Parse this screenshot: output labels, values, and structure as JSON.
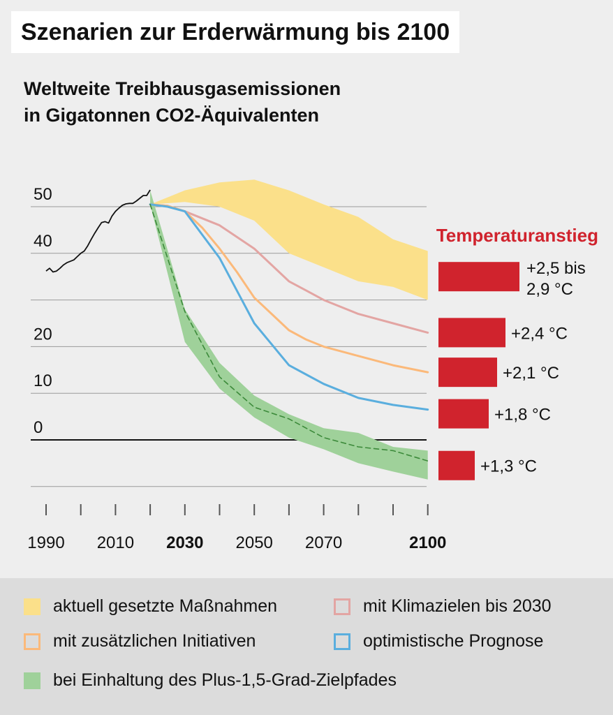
{
  "title": "Szenarien zur Erderwärmung bis 2100",
  "subtitle_line1": "Weltweite Treibhausgasemissionen",
  "subtitle_line2": "in Gigatonnen CO2-Äquivalenten",
  "colors": {
    "yellow": "#fbe08a",
    "pink": "#e3a5a3",
    "orange": "#fbb97a",
    "blue": "#5aaede",
    "green": "#9fd19a",
    "green_line": "#3c8a3a",
    "red": "#d0232d",
    "history": "#111111"
  },
  "chart_data": {
    "type": "line",
    "xlabel": "",
    "ylabel": "",
    "xlim": [
      1985,
      2100
    ],
    "ylim": [
      -10,
      60
    ],
    "y_ticks": [
      {
        "value": 50,
        "label": "50"
      },
      {
        "value": 40,
        "label": "40"
      },
      {
        "value": 30,
        "label": ""
      },
      {
        "value": 20,
        "label": "20"
      },
      {
        "value": 10,
        "label": "10"
      },
      {
        "value": 0,
        "label": "0"
      },
      {
        "value": -10,
        "label": ""
      }
    ],
    "x_ticks": [
      1990,
      2000,
      2010,
      2020,
      2030,
      2040,
      2050,
      2060,
      2070,
      2080,
      2090,
      2100
    ],
    "x_labels": [
      {
        "value": 1990,
        "label": "1990",
        "bold": false
      },
      {
        "value": 2010,
        "label": "2010",
        "bold": false
      },
      {
        "value": 2030,
        "label": "2030",
        "bold": true
      },
      {
        "value": 2050,
        "label": "2050",
        "bold": false
      },
      {
        "value": 2070,
        "label": "2070",
        "bold": false
      },
      {
        "value": 2100,
        "label": "2100",
        "bold": true
      }
    ],
    "history": {
      "x": [
        1990,
        1991,
        1992,
        1993,
        1994,
        1995,
        1996,
        1997,
        1998,
        1999,
        2000,
        2001,
        2002,
        2003,
        2004,
        2005,
        2006,
        2007,
        2008,
        2009,
        2010,
        2011,
        2012,
        2013,
        2014,
        2015,
        2016,
        2017,
        2018,
        2019,
        2020
      ],
      "y": [
        36.2,
        36.8,
        36.0,
        36.2,
        36.8,
        37.5,
        38.0,
        38.3,
        38.6,
        39.3,
        40.0,
        40.5,
        41.6,
        43.0,
        44.3,
        45.5,
        46.6,
        46.8,
        46.5,
        48.0,
        49.0,
        49.7,
        50.3,
        50.6,
        50.7,
        50.7,
        51.2,
        51.8,
        52.4,
        52.4,
        53.6
      ]
    },
    "bands": [
      {
        "name": "aktuell gesetzte Maßnahmen",
        "color_key": "yellow",
        "x": [
          2020,
          2030,
          2040,
          2050,
          2060,
          2070,
          2080,
          2090,
          2100
        ],
        "upper": [
          50.5,
          53.5,
          55.2,
          55.8,
          53.5,
          50.5,
          47.8,
          43.0,
          40.5
        ],
        "lower": [
          50.5,
          51.0,
          50.0,
          47.0,
          40.0,
          37.0,
          34.0,
          32.8,
          30.0
        ]
      },
      {
        "name": "bei Einhaltung des Plus-1,5-Grad-Zielpfades",
        "color_key": "green",
        "x": [
          2020,
          2030,
          2040,
          2050,
          2060,
          2070,
          2080,
          2090,
          2100
        ],
        "upper": [
          53.5,
          28.0,
          16.5,
          9.5,
          5.5,
          2.5,
          1.5,
          -1.5,
          -2.3
        ],
        "lower": [
          50.5,
          21.0,
          11.0,
          4.8,
          0.5,
          -2.0,
          -5.0,
          -6.8,
          -8.5
        ]
      }
    ],
    "series": [
      {
        "name": "mit Klimazielen bis 2030",
        "color_key": "pink",
        "x": [
          2020,
          2025,
          2030,
          2035,
          2040,
          2045,
          2050,
          2055,
          2060,
          2065,
          2070,
          2080,
          2090,
          2100
        ],
        "y": [
          50.5,
          50.2,
          49.0,
          47.5,
          46.0,
          43.5,
          41.0,
          37.5,
          34.0,
          32.0,
          30.0,
          27.0,
          25.0,
          23.0
        ]
      },
      {
        "name": "mit zusätzlichen Initiativen",
        "color_key": "orange",
        "x": [
          2020,
          2025,
          2030,
          2035,
          2040,
          2045,
          2050,
          2055,
          2060,
          2065,
          2070,
          2080,
          2090,
          2100
        ],
        "y": [
          50.5,
          50.2,
          49.0,
          45.5,
          41.0,
          36.0,
          30.5,
          27.0,
          23.5,
          21.5,
          20.0,
          18.0,
          16.0,
          14.5
        ]
      },
      {
        "name": "optimistische Prognose",
        "color_key": "blue",
        "x": [
          2020,
          2025,
          2030,
          2035,
          2040,
          2045,
          2050,
          2055,
          2060,
          2065,
          2070,
          2080,
          2090,
          2100
        ],
        "y": [
          50.5,
          50.0,
          49.0,
          44.0,
          39.0,
          32.0,
          25.0,
          20.5,
          16.0,
          14.0,
          12.0,
          9.0,
          7.5,
          6.5
        ]
      },
      {
        "name": "",
        "color_key": "green_line",
        "dashed": true,
        "x": [
          2020,
          2030,
          2040,
          2050,
          2060,
          2070,
          2080,
          2090,
          2100
        ],
        "y": [
          50.5,
          27.5,
          13.5,
          7.0,
          4.5,
          0.5,
          -1.5,
          -2.3,
          -4.5
        ]
      }
    ],
    "temperature": {
      "title": "Temperaturanstieg",
      "bars": [
        {
          "label_line1": "+2,5  bis",
          "label_line2": "2,9 °C",
          "value": 2.9,
          "center_y": 35.0
        },
        {
          "label_line1": "+2,4 °C",
          "label_line2": "",
          "value": 2.4,
          "center_y": 23.0
        },
        {
          "label_line1": "+2,1 °C",
          "label_line2": "",
          "value": 2.1,
          "center_y": 14.5
        },
        {
          "label_line1": "+1,8 °C",
          "label_line2": "",
          "value": 1.8,
          "center_y": 5.6
        },
        {
          "label_line1": "+1,3 °C",
          "label_line2": "",
          "value": 1.3,
          "center_y": -5.5
        }
      ]
    }
  },
  "legend": {
    "items": [
      {
        "label": "aktuell gesetzte Maßnahmen",
        "color_key": "yellow",
        "style": "fill"
      },
      {
        "label": "mit Klimazielen bis 2030",
        "color_key": "pink",
        "style": "outline"
      },
      {
        "label": "mit zusätzlichen Initiativen",
        "color_key": "orange",
        "style": "outline"
      },
      {
        "label": "optimistische Prognose",
        "color_key": "blue",
        "style": "outline"
      },
      {
        "label": "bei Einhaltung des Plus-1,5-Grad-Zielpfades",
        "color_key": "green",
        "style": "fill"
      }
    ]
  }
}
